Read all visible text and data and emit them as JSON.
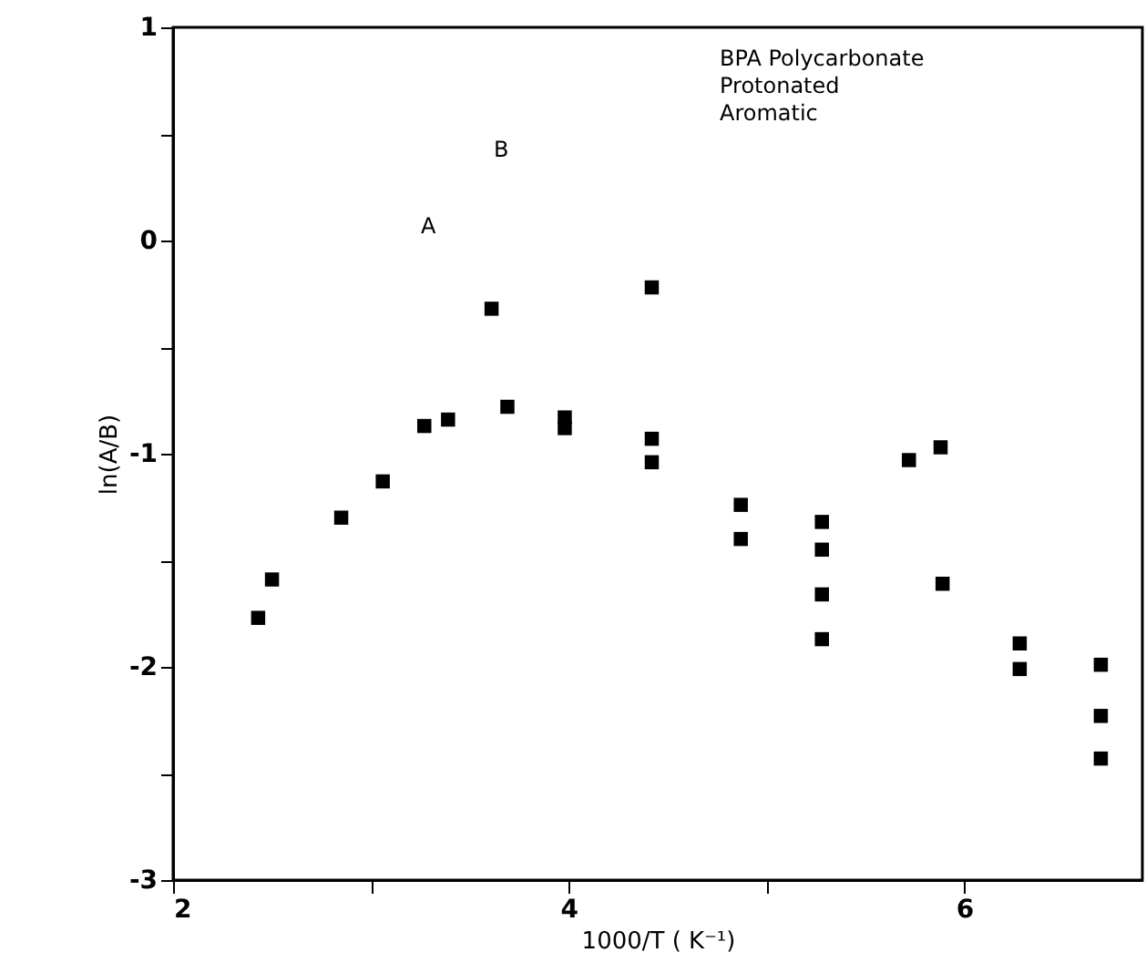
{
  "chart_data": {
    "type": "scatter",
    "title": "BPA Polycarbonate\nProtonated\nAromatic",
    "xlabel": "1000/T ( K⁻¹)",
    "ylabel": "ln(A/B)",
    "annotations": [
      "A",
      "B"
    ],
    "x": [
      2.43,
      2.5,
      2.85,
      3.06,
      3.27,
      3.39,
      3.61,
      3.69,
      3.98,
      3.98,
      4.42,
      4.42,
      4.42,
      4.87,
      4.87,
      5.28,
      5.28,
      5.28,
      5.28,
      5.72,
      5.88,
      5.89,
      6.28,
      6.28,
      6.69,
      6.69,
      6.69
    ],
    "values": [
      -1.77,
      -1.59,
      -1.3,
      -1.13,
      -0.87,
      -0.84,
      -0.32,
      -0.78,
      -0.83,
      -0.88,
      -0.22,
      -0.93,
      -1.04,
      -1.24,
      -1.4,
      -1.32,
      -1.45,
      -1.66,
      -1.87,
      -1.03,
      -0.97,
      -1.61,
      -1.89,
      -2.01,
      -1.99,
      -2.23,
      -2.43
    ],
    "color": "#000000",
    "marker": "square",
    "xlim": [
      2,
      6.9
    ],
    "ylim": [
      -3,
      1
    ],
    "xticks": [
      2,
      {
        "value": 3,
        "label": null
      },
      4,
      {
        "value": 5,
        "label": null
      },
      6
    ],
    "yticks": [
      -3,
      {
        "value": -2.5,
        "label": null
      },
      -2,
      {
        "value": -1.5,
        "label": null
      },
      -1,
      {
        "value": -0.5,
        "label": null
      },
      0,
      {
        "value": 0.5,
        "label": null
      },
      1
    ],
    "grid": false
  }
}
